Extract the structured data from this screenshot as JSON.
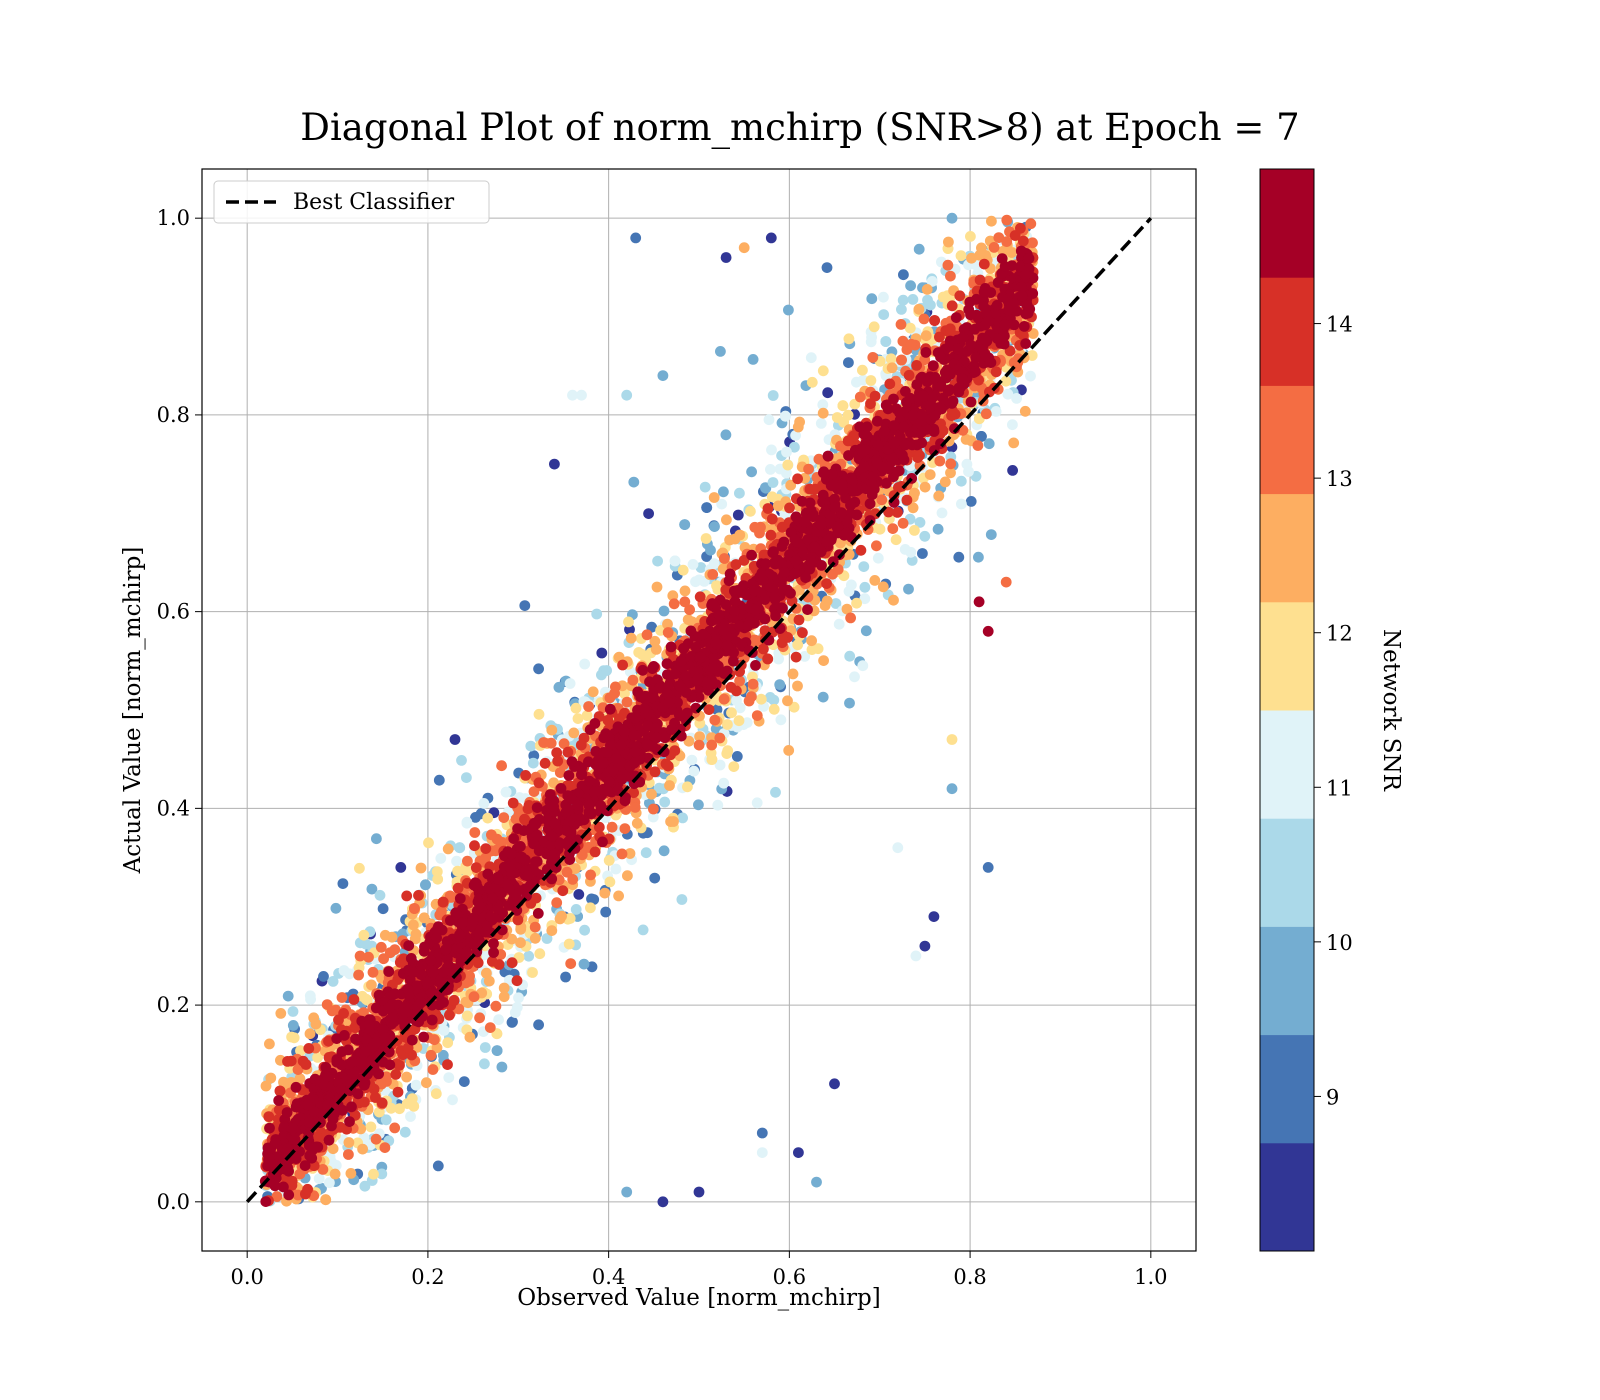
{
  "chart_data": {
    "type": "scatter",
    "title": "Diagonal Plot of norm_mchirp (SNR>8) at Epoch = 7",
    "xlabel": "Observed Value [norm_mchirp]",
    "ylabel": "Actual Value [norm_mchirp]",
    "xlim": [
      -0.05,
      1.05
    ],
    "ylim": [
      -0.05,
      1.05
    ],
    "x_ticks": [
      "0.0",
      "0.2",
      "0.4",
      "0.6",
      "0.8",
      "1.0"
    ],
    "y_ticks": [
      "0.0",
      "0.2",
      "0.4",
      "0.6",
      "0.8",
      "1.0"
    ],
    "grid": true,
    "legend": {
      "position": "top-left",
      "entries": [
        "Best Classifier"
      ]
    },
    "reference_line": {
      "name": "Best Classifier",
      "x": [
        0.0,
        1.0
      ],
      "y": [
        0.0,
        1.0
      ],
      "style": "dashed",
      "color": "#000000"
    },
    "colorbar": {
      "label": "Network SNR",
      "range": [
        8.0,
        15.0
      ],
      "ticks": [
        "9",
        "10",
        "11",
        "12",
        "13",
        "14"
      ],
      "tick_values": [
        9,
        10,
        11,
        12,
        13,
        14
      ],
      "colors": [
        "#313695",
        "#4575b4",
        "#74add1",
        "#abd9e9",
        "#e0f3f8",
        "#fee090",
        "#fdae61",
        "#f46d43",
        "#d73027",
        "#a50026"
      ]
    },
    "point_cloud": {
      "x_range": [
        0.02,
        0.87
      ],
      "y_range": [
        0.0,
        1.0
      ],
      "center_line": {
        "slope": 1.07,
        "intercept": 0.02
      },
      "spread": "wider for low SNR, tighter for high SNR",
      "samples": [
        {
          "x": 0.43,
          "y": 0.98,
          "snr": 9.2
        },
        {
          "x": 0.34,
          "y": 0.75,
          "snr": 8.3
        },
        {
          "x": 0.37,
          "y": 0.82,
          "snr": 11.2
        },
        {
          "x": 0.42,
          "y": 0.82,
          "snr": 10.5
        },
        {
          "x": 0.46,
          "y": 0.84,
          "snr": 9.6
        },
        {
          "x": 0.17,
          "y": 0.34,
          "snr": 8.4
        },
        {
          "x": 0.23,
          "y": 0.47,
          "snr": 8.3
        },
        {
          "x": 0.82,
          "y": 0.34,
          "snr": 9.3
        },
        {
          "x": 0.76,
          "y": 0.29,
          "snr": 8.4
        },
        {
          "x": 0.75,
          "y": 0.26,
          "snr": 8.5
        },
        {
          "x": 0.78,
          "y": 0.42,
          "snr": 9.6
        },
        {
          "x": 0.65,
          "y": 0.12,
          "snr": 8.4
        },
        {
          "x": 0.63,
          "y": 0.02,
          "snr": 9.8
        },
        {
          "x": 0.61,
          "y": 0.05,
          "snr": 8.6
        },
        {
          "x": 0.57,
          "y": 0.07,
          "snr": 9.0
        },
        {
          "x": 0.46,
          "y": 0.0,
          "snr": 8.5
        },
        {
          "x": 0.5,
          "y": 0.01,
          "snr": 8.4
        },
        {
          "x": 0.42,
          "y": 0.01,
          "snr": 9.4
        },
        {
          "x": 0.84,
          "y": 0.63,
          "snr": 13.2
        },
        {
          "x": 0.81,
          "y": 0.61,
          "snr": 14.4
        },
        {
          "x": 0.82,
          "y": 0.58,
          "snr": 14.8
        },
        {
          "x": 0.86,
          "y": 0.89,
          "snr": 14.6
        },
        {
          "x": 0.78,
          "y": 0.47,
          "snr": 11.8
        },
        {
          "x": 0.72,
          "y": 0.36,
          "snr": 11.0
        },
        {
          "x": 0.74,
          "y": 0.25,
          "snr": 11.3
        },
        {
          "x": 0.57,
          "y": 0.05,
          "snr": 11.2
        },
        {
          "x": 0.36,
          "y": 0.82,
          "snr": 11.1
        },
        {
          "x": 0.78,
          "y": 1.0,
          "snr": 9.4
        },
        {
          "x": 0.53,
          "y": 0.96,
          "snr": 8.4
        },
        {
          "x": 0.58,
          "y": 0.98,
          "snr": 8.6
        },
        {
          "x": 0.55,
          "y": 0.97,
          "snr": 12.5
        }
      ]
    }
  }
}
